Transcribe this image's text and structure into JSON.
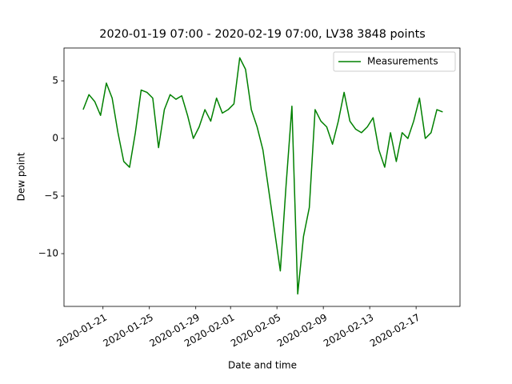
{
  "chart_data": {
    "type": "line",
    "title": "2020-01-19 07:00 - 2020-02-19 07:00, LV38 3848 points",
    "x_label": "Date and time",
    "y_label": "Dew point",
    "x": [
      "2020-01-19T07:00",
      "2020-01-19T19:00",
      "2020-01-20T07:00",
      "2020-01-20T19:00",
      "2020-01-21T07:00",
      "2020-01-21T19:00",
      "2020-01-22T07:00",
      "2020-01-22T19:00",
      "2020-01-23T07:00",
      "2020-01-23T19:00",
      "2020-01-24T07:00",
      "2020-01-24T19:00",
      "2020-01-25T07:00",
      "2020-01-25T19:00",
      "2020-01-26T07:00",
      "2020-01-26T19:00",
      "2020-01-27T07:00",
      "2020-01-27T19:00",
      "2020-01-28T07:00",
      "2020-01-28T19:00",
      "2020-01-29T07:00",
      "2020-01-29T19:00",
      "2020-01-30T07:00",
      "2020-01-30T19:00",
      "2020-01-31T07:00",
      "2020-01-31T19:00",
      "2020-02-01T07:00",
      "2020-02-01T19:00",
      "2020-02-02T07:00",
      "2020-02-02T19:00",
      "2020-02-03T07:00",
      "2020-02-03T19:00",
      "2020-02-04T07:00",
      "2020-02-04T19:00",
      "2020-02-05T07:00",
      "2020-02-05T19:00",
      "2020-02-06T07:00",
      "2020-02-06T19:00",
      "2020-02-07T07:00",
      "2020-02-07T19:00",
      "2020-02-08T07:00",
      "2020-02-08T19:00",
      "2020-02-09T07:00",
      "2020-02-09T19:00",
      "2020-02-10T07:00",
      "2020-02-10T19:00",
      "2020-02-11T07:00",
      "2020-02-11T19:00",
      "2020-02-12T07:00",
      "2020-02-12T19:00",
      "2020-02-13T07:00",
      "2020-02-13T19:00",
      "2020-02-14T07:00",
      "2020-02-14T19:00",
      "2020-02-15T07:00",
      "2020-02-15T19:00",
      "2020-02-16T07:00",
      "2020-02-16T19:00",
      "2020-02-17T07:00",
      "2020-02-17T19:00",
      "2020-02-18T07:00",
      "2020-02-18T19:00",
      "2020-02-19T07:00"
    ],
    "series": [
      {
        "name": "Measurements",
        "color": "#008000",
        "values": [
          2.5,
          3.8,
          3.2,
          2.0,
          4.8,
          3.5,
          0.5,
          -2,
          -2.5,
          0.5,
          4.2,
          4.0,
          3.5,
          -0.8,
          2.5,
          3.8,
          3.4,
          3.7,
          2.0,
          0,
          1.0,
          2.5,
          1.5,
          3.5,
          2.2,
          2.5,
          3.0,
          7.0,
          6.0,
          2.5,
          1.0,
          -1,
          -4.5,
          -8,
          -11.5,
          -4,
          2.8,
          -13.5,
          -8.5,
          -6,
          2.5,
          1.5,
          1.0,
          -0.5,
          1.5,
          4.0,
          1.5,
          0.8,
          0.5,
          1.0,
          1.8,
          -1,
          -2.5,
          0.5,
          -2.0,
          0.5,
          0,
          1.5,
          3.5,
          0,
          0.5,
          2.5,
          2.3
        ]
      }
    ],
    "xlim": [
      "2020-01-17T15:20",
      "2020-02-20T18:50"
    ],
    "xticks": [
      "2020-01-21",
      "2020-01-25",
      "2020-01-29",
      "2020-02-01",
      "2020-02-05",
      "2020-02-09",
      "2020-02-13",
      "2020-02-17"
    ],
    "ylim": [
      -14.58,
      7.85
    ],
    "yticks": [
      {
        "value": -10,
        "label": "−10"
      },
      {
        "value": -5,
        "label": "−5"
      },
      0,
      5
    ],
    "grid": false,
    "legend": "upper right"
  }
}
